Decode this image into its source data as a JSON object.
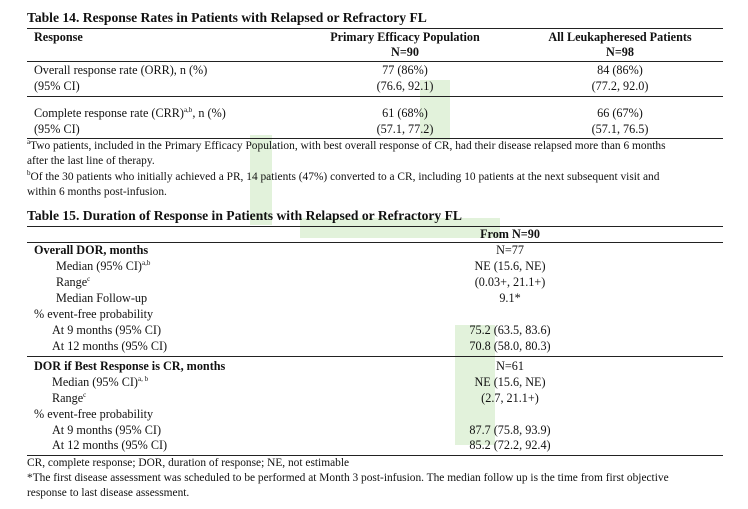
{
  "table14": {
    "title": "Table 14. Response Rates in Patients with Relapsed or Refractory FL",
    "headers": {
      "response": "Response",
      "col1_line1": "Primary Efficacy Population",
      "col1_line2": "N=90",
      "col2_line1": "All Leukapheresed Patients",
      "col2_line2": "N=98"
    },
    "rows": [
      {
        "label": "Overall response rate (ORR), n (%)",
        "label_sup": "",
        "label_tail": "",
        "v1": "77 (86%)",
        "v2": "84 (86%)"
      },
      {
        "label": "(95% CI)",
        "label_sup": "",
        "label_tail": "",
        "v1": "(76.6, 92.1)",
        "v2": "(77.2, 92.0)"
      },
      {
        "label": "Complete response rate (CRR)",
        "label_sup": "a,b",
        "label_tail": ", n (%)",
        "v1": "61 (68%)",
        "v2": "66 (67%)"
      },
      {
        "label": "(95% CI)",
        "label_sup": "",
        "label_tail": "",
        "v1": "(57.1, 77.2)",
        "v2": "(57.1, 76.5)"
      }
    ],
    "notes": [
      {
        "sup": "a",
        "text": "Two patients, included in the Primary Efficacy Population, with best overall response of CR, had their disease relapsed more than 6 months",
        "cont": "after the last line of therapy."
      },
      {
        "sup": "b",
        "text": "Of the 30 patients who initially achieved a PR, 14 patients (47%) converted to a CR, including 10 patients at the next subsequent visit and",
        "cont": "within 6 months post-infusion."
      }
    ]
  },
  "table15": {
    "title": "Table 15. Duration of Response in Patients with Relapsed or Refractory FL",
    "col_header": "From N=90",
    "rows": [
      {
        "label": "Overall DOR, months",
        "sup": "",
        "value": "N=77",
        "bold": true
      },
      {
        "label": "Median (95% CI)",
        "sup": "a,b",
        "value": "NE (15.6, NE)",
        "bold": false
      },
      {
        "label": "Range",
        "sup": "c",
        "value": "(0.03+, 21.1+)",
        "bold": false
      },
      {
        "label": "Median Follow-up",
        "sup": "",
        "value": "9.1*",
        "bold": false
      },
      {
        "label": "% event-free probability",
        "sup": "",
        "value": "",
        "bold": false
      },
      {
        "label": "At 9 months (95% CI)",
        "sup": "",
        "value": "75.2 (63.5, 83.6)",
        "bold": false
      },
      {
        "label": "At 12 months (95% CI)",
        "sup": "",
        "value": "70.8 (58.0, 80.3)",
        "bold": false
      },
      {
        "label": "DOR if Best Response is CR, months",
        "sup": "",
        "value": "N=61",
        "bold": true
      },
      {
        "label": "Median (95% CI)",
        "sup": "a, b",
        "value": "NE (15.6, NE)",
        "bold": false
      },
      {
        "label": "Range",
        "sup": "c",
        "value": "(2.7, 21.1+)",
        "bold": false
      },
      {
        "label": "% event-free probability",
        "sup": "",
        "value": "",
        "bold": false
      },
      {
        "label": "At 9 months (95% CI)",
        "sup": "",
        "value": "87.7 (75.8, 93.9)",
        "bold": false
      },
      {
        "label": "At 12 months (95% CI)",
        "sup": "",
        "value": "85.2 (72.2, 92.4)",
        "bold": false
      }
    ],
    "footnotes": [
      "CR, complete response; DOR, duration of response; NE, not estimable",
      "*The first disease assessment was scheduled to be performed at Month 3 post-infusion. The median follow up is the time from first objective",
      "response to last disease assessment."
    ]
  }
}
